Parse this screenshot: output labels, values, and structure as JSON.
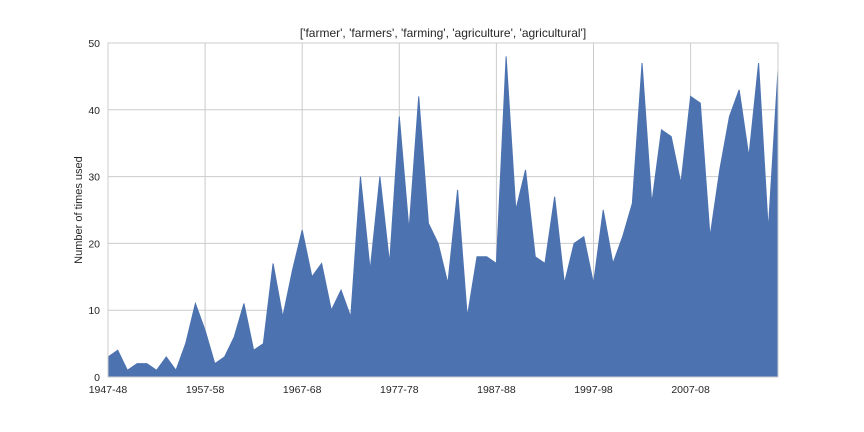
{
  "chart_data": {
    "type": "area",
    "title": "['farmer', 'farmers', 'farming', 'agriculture', 'agricultural']",
    "xlabel": "",
    "ylabel": "Number of times used",
    "ylim": [
      0,
      50
    ],
    "yticks": [
      0,
      10,
      20,
      30,
      40,
      50
    ],
    "xticks": [
      "1947-48",
      "1957-58",
      "1967-68",
      "1977-78",
      "1987-88",
      "1997-98",
      "2007-08"
    ],
    "grid": true,
    "color": "#4c72b0",
    "x_start": "1947-48",
    "values": [
      3,
      4,
      1,
      2,
      2,
      1,
      3,
      1,
      5,
      11,
      7,
      2,
      3,
      6,
      11,
      4,
      5,
      17,
      9,
      16,
      22,
      15,
      17,
      10,
      13,
      9,
      30,
      16,
      30,
      17,
      39,
      22,
      42,
      23,
      20,
      14,
      28,
      9,
      18,
      18,
      17,
      48,
      25,
      31,
      18,
      17,
      27,
      14,
      20,
      21,
      14,
      25,
      17,
      21,
      26,
      47,
      26,
      37,
      36,
      29,
      42,
      41,
      21,
      31,
      39,
      43,
      33,
      47,
      22,
      46
    ]
  }
}
